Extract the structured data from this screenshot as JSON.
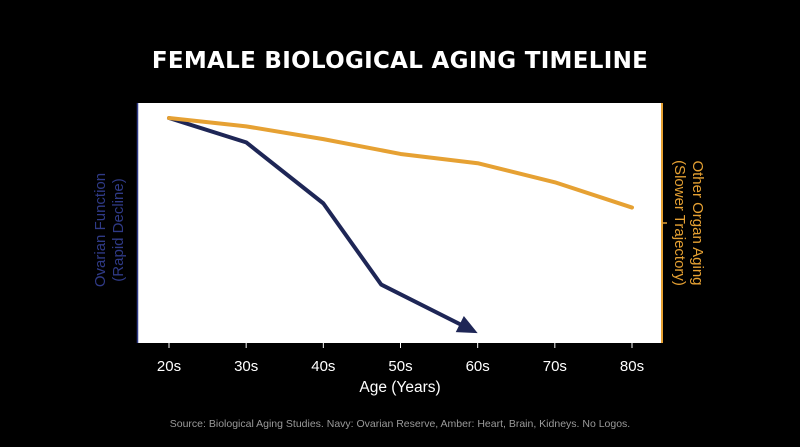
{
  "chart_data": {
    "type": "line",
    "title": "FEMALE BIOLOGICAL AGING TIMELINE",
    "xlabel": "Age (Years)",
    "categories": [
      "20s",
      "30s",
      "40s",
      "50s",
      "60s",
      "70s",
      "80s"
    ],
    "xlim": [
      20,
      80
    ],
    "ylim": [
      0,
      100
    ],
    "y_left_label": [
      "Ovarian Function",
      "(Rapid Decline)"
    ],
    "y_right_label": [
      "Other Organ Aging",
      "(Slower Trajectory)"
    ],
    "grid": false,
    "source": "Source: Biological Aging Studies. Navy: Ovarian Reserve, Amber: Heart, Brain, Kidneys. No Logos.",
    "series": [
      {
        "color": "#1e2656",
        "arrow": true,
        "x": [
          20,
          30,
          40,
          47.5,
          60
        ],
        "y": [
          100,
          89.5,
          63.2,
          28.2,
          7.3
        ]
      },
      {
        "color": "#e6a133",
        "arrow": false,
        "x": [
          20,
          30,
          40,
          50,
          60,
          70,
          80
        ],
        "y": [
          100,
          96.4,
          90.9,
          84.5,
          80.5,
          72.3,
          61.4
        ]
      }
    ]
  }
}
